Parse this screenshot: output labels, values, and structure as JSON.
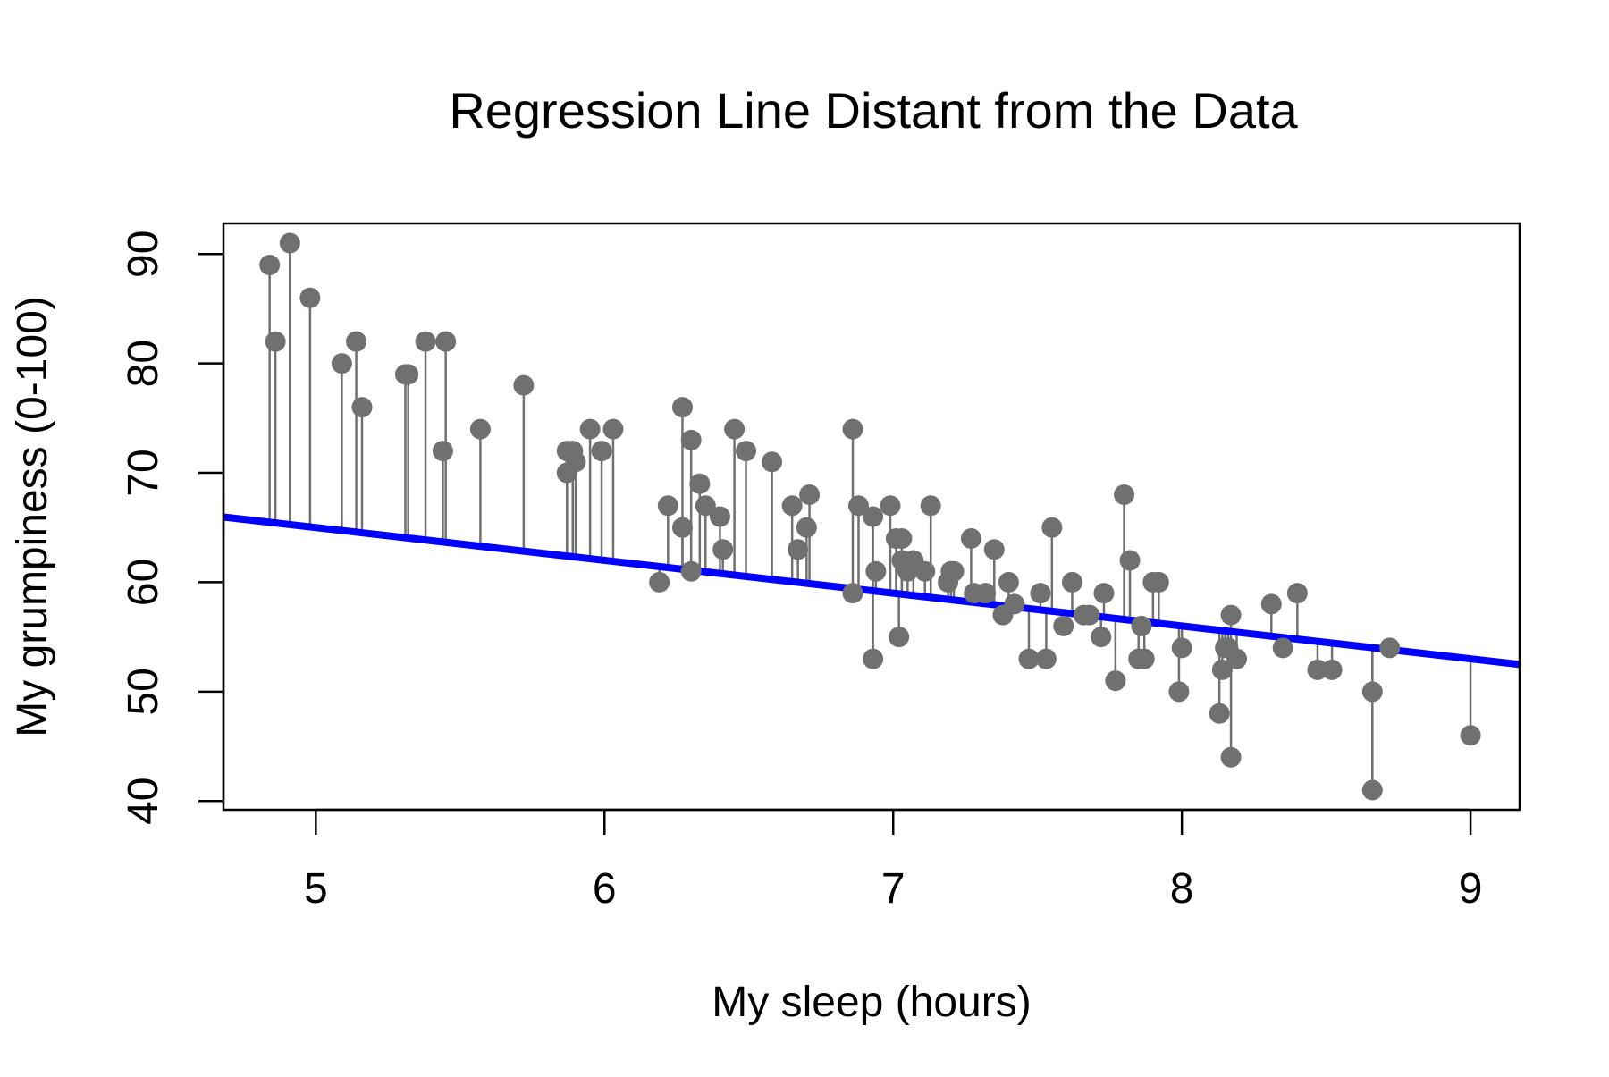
{
  "chart_data": {
    "type": "scatter",
    "title": "Regression Line Distant from the Data",
    "xlabel": "My sleep (hours)",
    "ylabel": "My grumpiness (0-100)",
    "xlim": [
      4.68,
      9.17
    ],
    "ylim": [
      39.2,
      92.8
    ],
    "xticks": [
      5,
      6,
      7,
      8,
      9
    ],
    "yticks": [
      40,
      50,
      60,
      70,
      80,
      90
    ],
    "grid": false,
    "legend": "none",
    "regression_line": {
      "intercept": 80,
      "slope": -3
    },
    "colors": {
      "points": "#707070",
      "residuals": "#707070",
      "regression": "#0000ff",
      "axes": "#000000",
      "background": "#ffffff"
    },
    "series": [
      {
        "x": [
          4.84,
          4.86,
          4.91,
          4.98,
          5.09,
          5.14,
          5.16,
          5.31,
          5.32,
          5.38,
          5.44,
          5.45,
          5.57,
          5.72,
          5.87,
          5.87,
          5.89,
          5.9,
          5.95,
          5.99,
          6.03,
          6.19,
          6.22,
          6.27,
          6.27,
          6.3,
          6.3,
          6.33,
          6.35,
          6.4,
          6.41,
          6.45,
          6.49,
          6.58,
          6.65,
          6.67,
          6.7,
          6.71,
          6.86,
          6.86,
          6.88,
          6.93,
          6.93,
          6.94,
          6.99,
          7.01,
          7.02,
          7.03,
          7.03,
          7.05,
          7.07,
          7.11,
          7.13,
          7.19,
          7.2,
          7.21,
          7.27,
          7.28,
          7.32,
          7.35,
          7.38,
          7.4,
          7.42,
          7.47,
          7.51,
          7.53,
          7.55,
          7.59,
          7.62,
          7.66,
          7.68,
          7.72,
          7.73,
          7.77,
          7.8,
          7.82,
          7.85,
          7.86,
          7.87,
          7.9,
          7.92,
          7.99,
          8.0,
          8.13,
          8.14,
          8.15,
          8.16,
          8.17,
          8.17,
          8.19,
          8.31,
          8.35,
          8.4,
          8.47,
          8.52,
          8.66,
          8.66,
          8.72,
          9.0
        ],
        "y": [
          89,
          82,
          91,
          86,
          80,
          82,
          76,
          79,
          79,
          82,
          72,
          82,
          74,
          78,
          72,
          70,
          72,
          71,
          74,
          72,
          74,
          60,
          67,
          76,
          65,
          73,
          61,
          69,
          67,
          66,
          63,
          74,
          72,
          71,
          67,
          63,
          65,
          68,
          59,
          74,
          67,
          53,
          66,
          61,
          67,
          64,
          55,
          62,
          64,
          61,
          62,
          61,
          67,
          60,
          61,
          61,
          64,
          59,
          59,
          63,
          57,
          60,
          58,
          53,
          59,
          53,
          65,
          56,
          60,
          57,
          57,
          55,
          59,
          51,
          68,
          62,
          53,
          56,
          53,
          60,
          60,
          50,
          54,
          48,
          52,
          54,
          54,
          57,
          44,
          53,
          58,
          54,
          59,
          52,
          52,
          50,
          41,
          54,
          46
        ]
      }
    ]
  }
}
